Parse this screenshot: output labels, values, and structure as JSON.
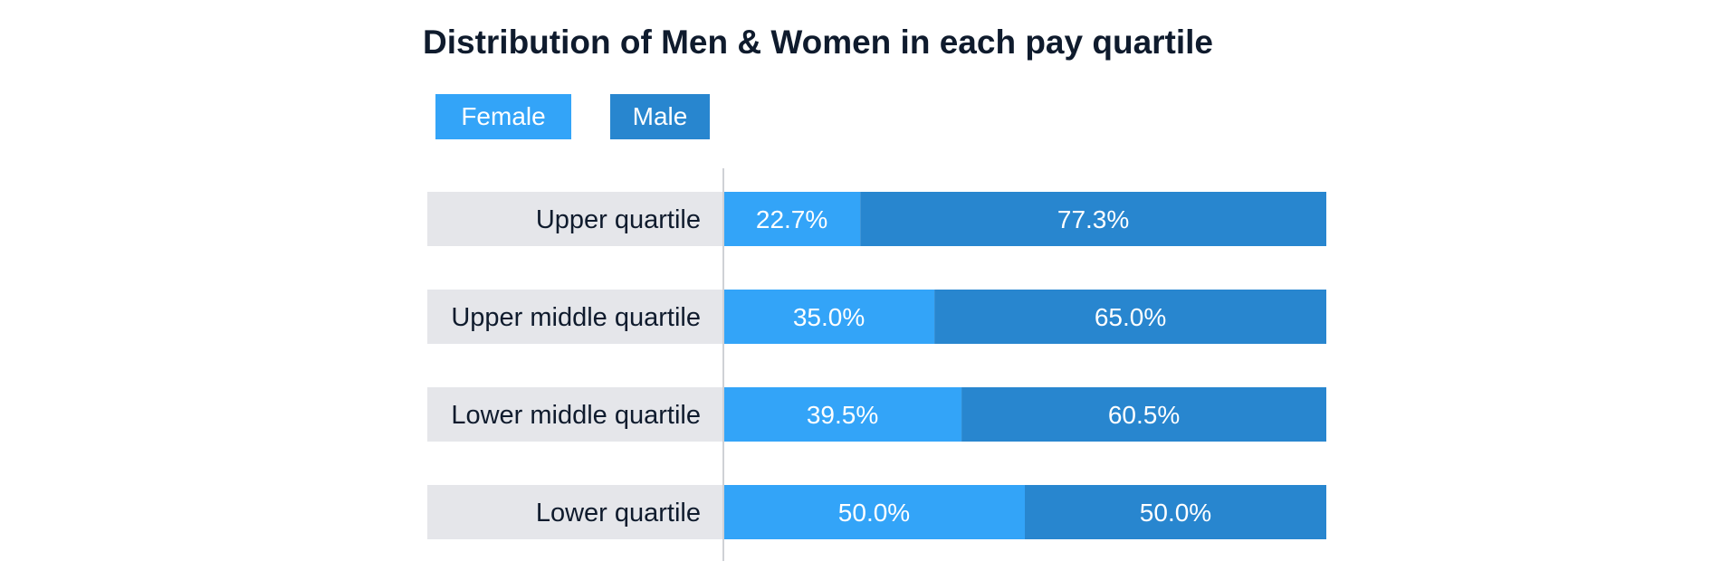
{
  "chart_data": {
    "type": "bar",
    "orientation": "horizontal",
    "stacked": true,
    "title": "Distribution of Men & Women in each pay quartile",
    "categories": [
      "Upper quartile",
      "Upper middle quartile",
      "Lower middle quartile",
      "Lower quartile"
    ],
    "series": [
      {
        "name": "Female",
        "color": "#33a4f8",
        "values": [
          22.7,
          35.0,
          39.5,
          50.0
        ],
        "labels": [
          "22.7%",
          "35.0%",
          "39.5%",
          "50.0%"
        ]
      },
      {
        "name": "Male",
        "color": "#2886cf",
        "values": [
          77.3,
          65.0,
          60.5,
          50.0
        ],
        "labels": [
          "77.3%",
          "65.0%",
          "60.5%",
          "50.0%"
        ]
      }
    ],
    "xlim": [
      0,
      100
    ],
    "legend_position": "top-left",
    "category_label_background": "#e5e6ea",
    "axis_line_color": "#cfd1d6",
    "grid": false
  }
}
